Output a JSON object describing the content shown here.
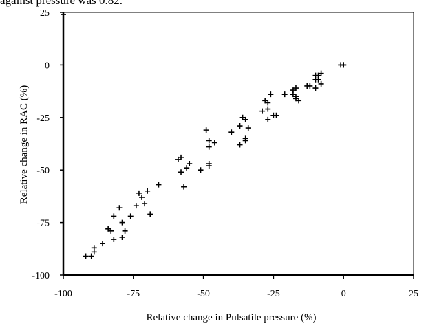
{
  "caption_fragment": "against pressure was 0.82.",
  "chart_data": {
    "type": "scatter",
    "xlabel": "Relative change in Pulsatile pressure (%)",
    "ylabel": "Relative change in RAC (%)",
    "xlim": [
      -100,
      25
    ],
    "ylim": [
      -100,
      25
    ],
    "xticks": [
      -100,
      -75,
      -50,
      -25,
      0,
      25
    ],
    "yticks": [
      25,
      0,
      -25,
      -50,
      -75,
      -100
    ],
    "xtick_labels": [
      "-100",
      "-75",
      "-50",
      "-25",
      "0",
      "25"
    ],
    "ytick_labels": [
      "25",
      "0",
      "-25",
      "-50",
      "-75",
      "-100"
    ],
    "grid": false,
    "marker": "+",
    "series": [
      {
        "points": [
          [
            -100,
            24
          ],
          [
            0,
            0
          ],
          [
            -92,
            -91
          ],
          [
            -90,
            -91
          ],
          [
            -89,
            -89
          ],
          [
            -89,
            -87
          ],
          [
            -86,
            -85
          ],
          [
            -84,
            -78
          ],
          [
            -83,
            -79
          ],
          [
            -82,
            -83
          ],
          [
            -82,
            -72
          ],
          [
            -80,
            -68
          ],
          [
            -79,
            -82
          ],
          [
            -79,
            -75
          ],
          [
            -78,
            -79
          ],
          [
            -76,
            -72
          ],
          [
            -74,
            -67
          ],
          [
            -73,
            -61
          ],
          [
            -72,
            -63
          ],
          [
            -71,
            -66
          ],
          [
            -70,
            -60
          ],
          [
            -69,
            -71
          ],
          [
            -66,
            -57
          ],
          [
            -59,
            -45
          ],
          [
            -58,
            -44
          ],
          [
            -58,
            -51
          ],
          [
            -57,
            -58
          ],
          [
            -56,
            -49
          ],
          [
            -55,
            -47
          ],
          [
            -51,
            -50
          ],
          [
            -49,
            -31
          ],
          [
            -48,
            -36
          ],
          [
            -48,
            -39
          ],
          [
            -48,
            -47
          ],
          [
            -48,
            -48
          ],
          [
            -46,
            -37
          ],
          [
            -40,
            -32
          ],
          [
            -37,
            -29
          ],
          [
            -37,
            -38
          ],
          [
            -36,
            -25
          ],
          [
            -35,
            -26
          ],
          [
            -35,
            -35
          ],
          [
            -35,
            -36
          ],
          [
            -34,
            -30
          ],
          [
            -29,
            -22
          ],
          [
            -28,
            -17
          ],
          [
            -27,
            -18
          ],
          [
            -27,
            -21
          ],
          [
            -27,
            -26
          ],
          [
            -26,
            -14
          ],
          [
            -25,
            -24
          ],
          [
            -24,
            -24
          ],
          [
            -21,
            -14
          ],
          [
            -18,
            -12
          ],
          [
            -18,
            -14
          ],
          [
            -17,
            -11
          ],
          [
            -17,
            -15
          ],
          [
            -17,
            -16
          ],
          [
            -16,
            -17
          ],
          [
            -13,
            -10
          ],
          [
            -12,
            -10
          ],
          [
            -10,
            -5
          ],
          [
            -10,
            -7
          ],
          [
            -10,
            -11
          ],
          [
            -9,
            -5
          ],
          [
            -9,
            -7
          ],
          [
            -8,
            -4
          ],
          [
            -8,
            -9
          ],
          [
            -1,
            0
          ],
          [
            0,
            0
          ]
        ]
      }
    ]
  }
}
